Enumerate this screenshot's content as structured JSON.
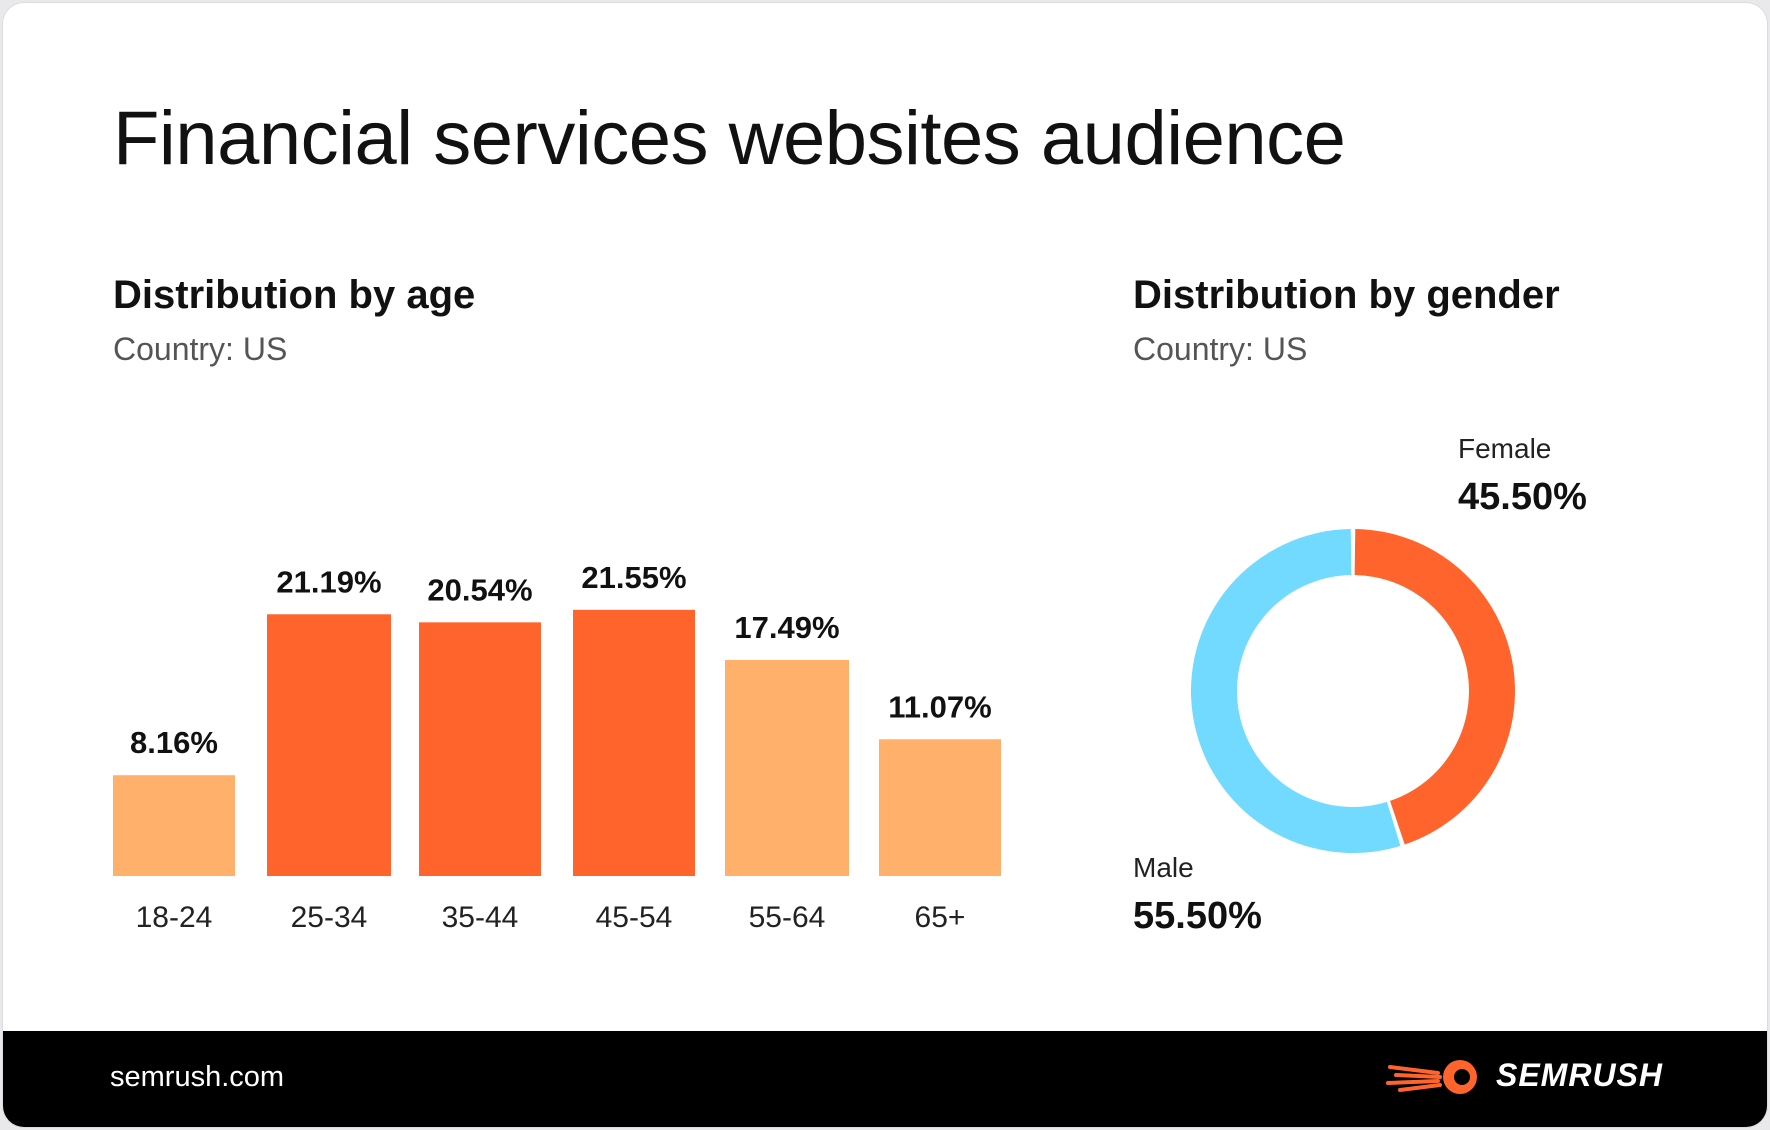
{
  "title": "Financial services websites audience",
  "colors": {
    "bar_dark": "#ff642d",
    "bar_light": "#ffb06b",
    "female": "#ff642d",
    "male": "#72d9ff",
    "footer_bg": "#000000",
    "brand": "#ff642d"
  },
  "footer": {
    "link": "semrush.com",
    "brand_name": "SEMRUSH",
    "logo_icon": "semrush-fireball-icon"
  },
  "chart_data": [
    {
      "type": "bar",
      "title": "Distribution by age",
      "subtitle": "Country: US",
      "categories": [
        "18-24",
        "25-34",
        "35-44",
        "45-54",
        "55-64",
        "65+"
      ],
      "values": [
        8.16,
        21.19,
        20.54,
        21.55,
        17.49,
        11.07
      ],
      "value_labels": [
        "8.16%",
        "21.19%",
        "20.54%",
        "21.55%",
        "17.49%",
        "11.07%"
      ],
      "bar_colors": [
        "#ffb06b",
        "#ff642d",
        "#ff642d",
        "#ff642d",
        "#ffb06b",
        "#ffb06b"
      ],
      "ylim": [
        0,
        25
      ],
      "grid": false,
      "legend": "none"
    },
    {
      "type": "pie",
      "style": "donut",
      "title": "Distribution by gender",
      "subtitle": "Country: US",
      "slices": [
        {
          "label": "Female",
          "value": 45.5,
          "value_label": "45.50%",
          "color": "#ff642d"
        },
        {
          "label": "Male",
          "value": 55.5,
          "value_label": "55.50%",
          "color": "#72d9ff"
        }
      ],
      "legend": "direct labels"
    }
  ]
}
